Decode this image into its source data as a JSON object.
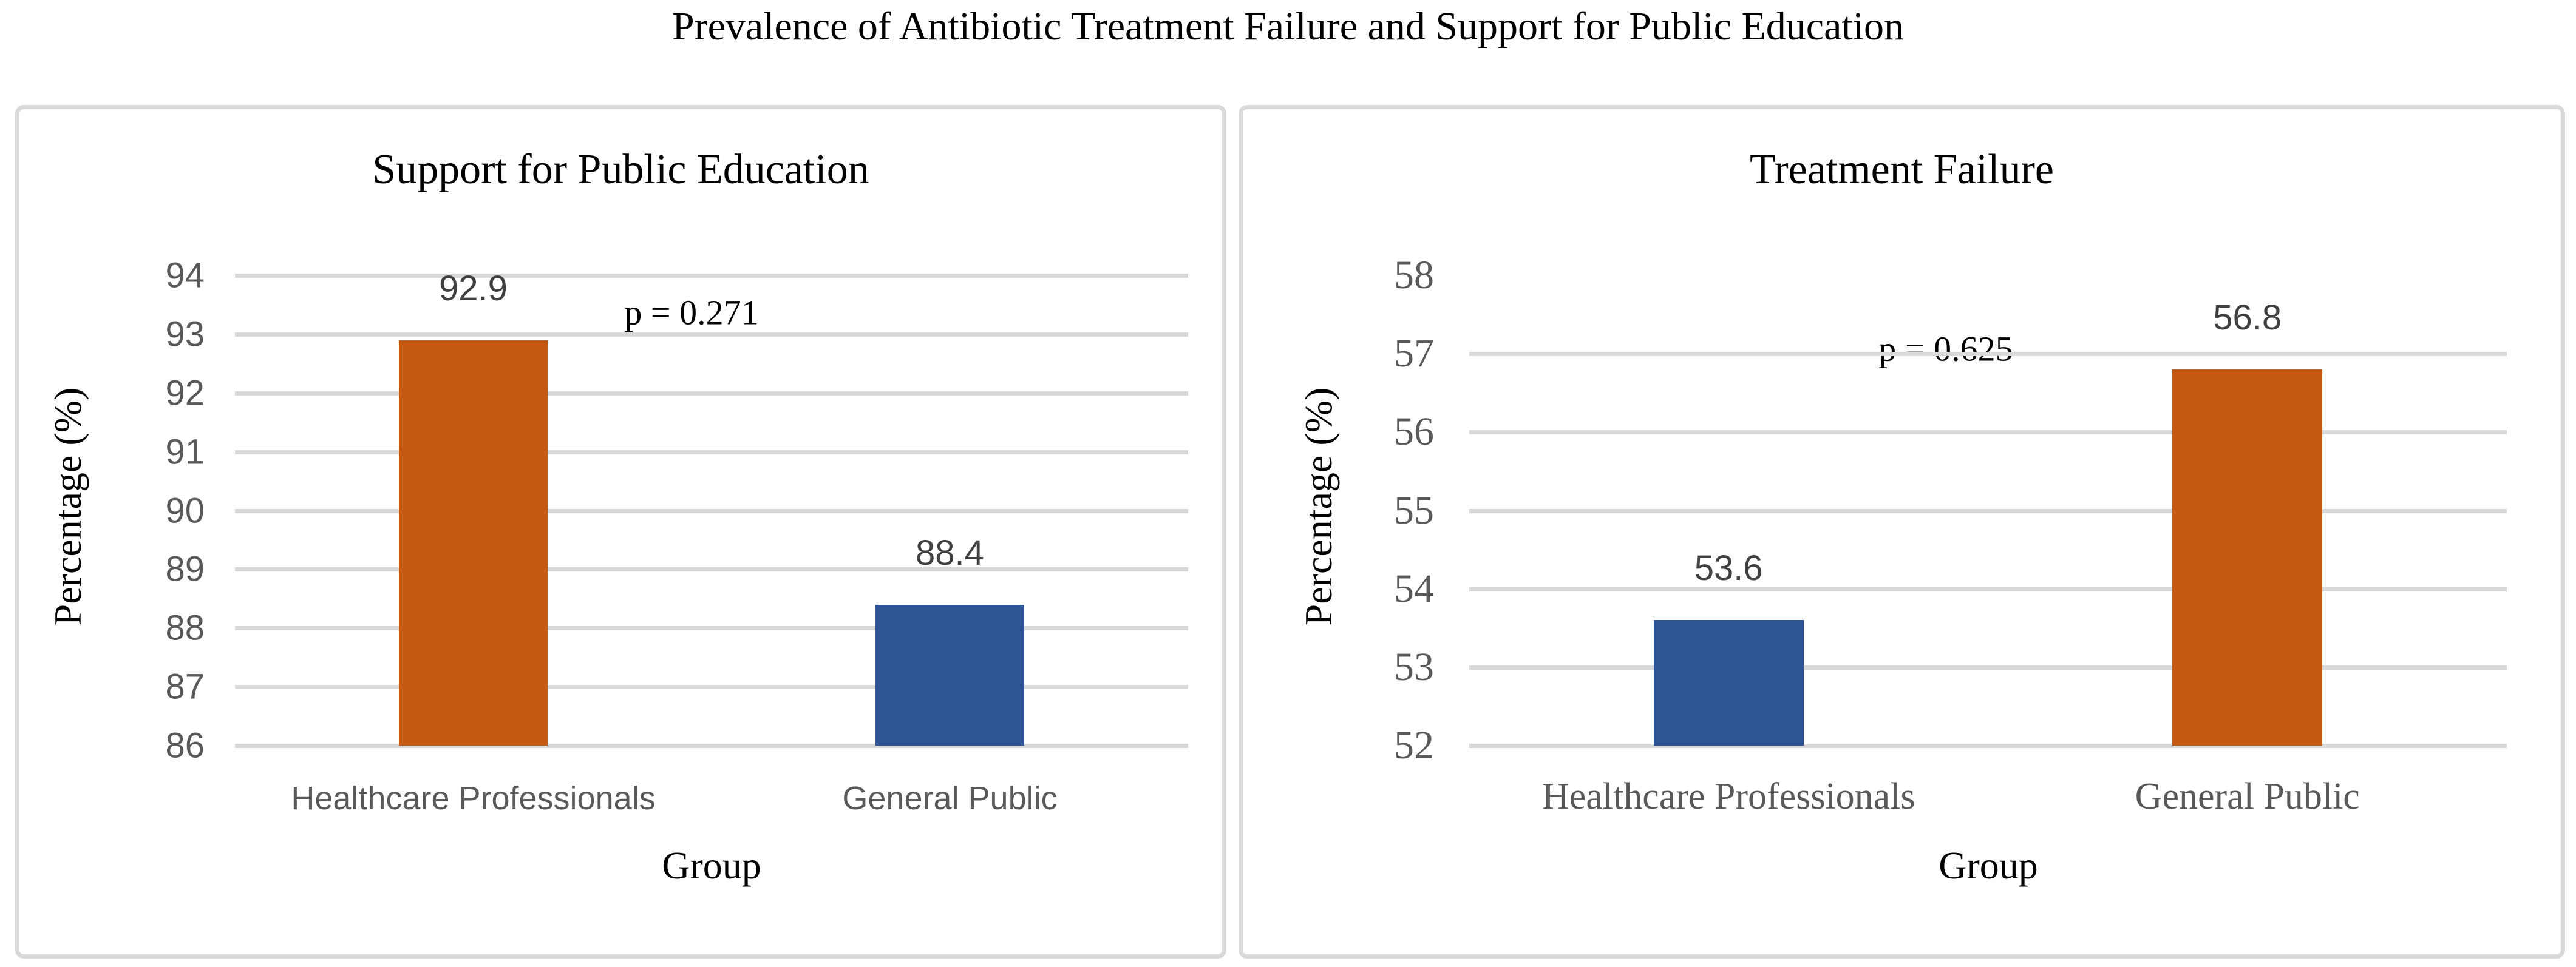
{
  "figure": {
    "title": "Prevalence of Antibiotic Treatment Failure and Support for Public Education"
  },
  "colors": {
    "orange": "#C55A11",
    "blue": "#2F5597",
    "gridline": "#D9D9D9",
    "panel_border": "#D9D9D9",
    "tick_label": "#595959",
    "value_label": "#404040",
    "title_text": "#000000"
  },
  "chart_data": [
    {
      "type": "bar",
      "title": "Support for Public Education",
      "xlabel": "Group",
      "ylabel": "Percentage (%)",
      "categories": [
        "Healthcare Professionals",
        "General Public"
      ],
      "values": [
        92.9,
        88.4
      ],
      "value_labels": [
        "92.9",
        "88.4"
      ],
      "bar_colors": [
        "#C55A11",
        "#2F5597"
      ],
      "annotation": "p = 0.271",
      "ylim": [
        86,
        94
      ],
      "yticks": [
        86,
        87,
        88,
        89,
        90,
        91,
        92,
        93,
        94
      ],
      "gridline_ticks": [
        86,
        87,
        88,
        89,
        90,
        91,
        92,
        93,
        94
      ],
      "grid": true,
      "legend_position": "none"
    },
    {
      "type": "bar",
      "title": "Treatment Failure",
      "xlabel": "Group",
      "ylabel": "Percentage (%)",
      "categories": [
        "Healthcare Professionals",
        "General Public"
      ],
      "values": [
        53.6,
        56.8
      ],
      "value_labels": [
        "53.6",
        "56.8"
      ],
      "bar_colors": [
        "#2F5597",
        "#C55A11"
      ],
      "annotation": "p = 0.625",
      "ylim": [
        52,
        58
      ],
      "yticks": [
        52,
        53,
        54,
        55,
        56,
        57,
        58
      ],
      "gridline_ticks": [
        52,
        53,
        54,
        55,
        56,
        57
      ],
      "grid": true,
      "legend_position": "none"
    }
  ]
}
